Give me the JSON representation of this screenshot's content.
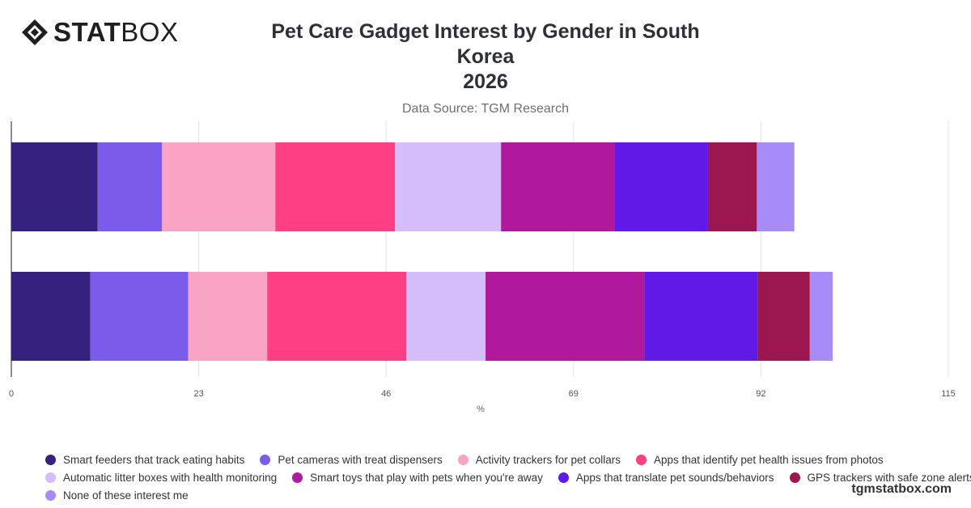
{
  "brand": {
    "logo_bold": "STAT",
    "logo_light": "BOX",
    "watermark": "tgmstatbox.com"
  },
  "header": {
    "title_line1": "Pet Care Gadget Interest by Gender in South Korea",
    "title_line2": "2026",
    "source": "Data Source: TGM Research"
  },
  "chart_data": {
    "type": "bar",
    "orientation": "horizontal",
    "stacked": true,
    "categories": [
      "",
      ""
    ],
    "xlabel": "%",
    "xlim": [
      0,
      115
    ],
    "xticks": [
      0,
      23,
      46,
      69,
      92,
      115
    ],
    "grid": true,
    "legend_position": "bottom",
    "series": [
      {
        "name": "Smart feeders that track eating habits",
        "color": "#36217f",
        "values": [
          10.6,
          9.7
        ]
      },
      {
        "name": "Pet cameras with treat dispensers",
        "color": "#7b5cea",
        "values": [
          7.9,
          12.0
        ]
      },
      {
        "name": "Activity trackers for pet collars",
        "color": "#f9a4c4",
        "values": [
          13.9,
          9.7
        ]
      },
      {
        "name": "Apps that identify pet health issues from photos",
        "color": "#ff3f84",
        "values": [
          14.7,
          17.1
        ]
      },
      {
        "name": "Automatic litter boxes with health monitoring",
        "color": "#d4bdfa",
        "values": [
          13.0,
          9.7
        ]
      },
      {
        "name": "Smart toys that play with pets when you're away",
        "color": "#b1199d",
        "values": [
          13.9,
          19.5
        ]
      },
      {
        "name": "Apps that translate pet sounds/behaviors",
        "color": "#6119e8",
        "values": [
          11.5,
          13.9
        ]
      },
      {
        "name": "GPS trackers with safe zone alerts",
        "color": "#9c1650",
        "values": [
          6.0,
          6.4
        ]
      },
      {
        "name": "None of these interest me",
        "color": "#a78cf8",
        "values": [
          4.6,
          2.8
        ]
      }
    ]
  }
}
